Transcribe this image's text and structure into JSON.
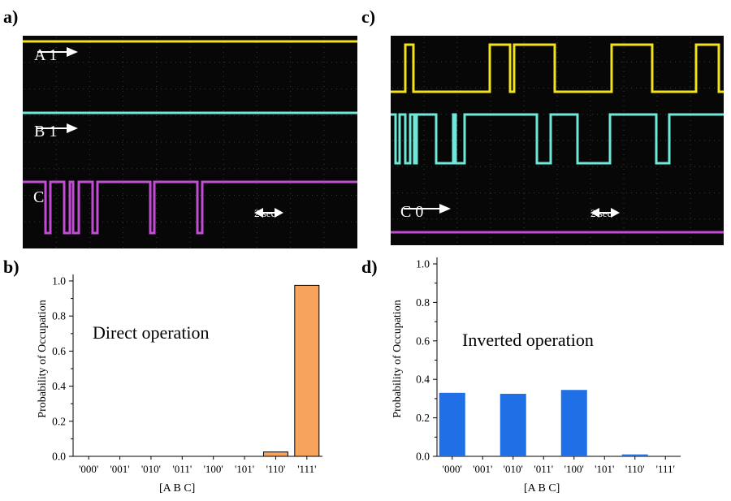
{
  "panels": {
    "a": {
      "label": "a)"
    },
    "b": {
      "label": "b)"
    },
    "c": {
      "label": "c)"
    },
    "d": {
      "label": "d)"
    }
  },
  "scope_a": {
    "channel_a": {
      "name": "A",
      "value": "1"
    },
    "channel_b": {
      "name": "B",
      "value": "1"
    },
    "channel_c": {
      "name": "C"
    },
    "timescale": "2 sec",
    "colors": {
      "a": "#f2e21a",
      "b": "#6ee8d8",
      "c": "#c34bd6",
      "background": "#070707",
      "grid": "#2a2a2a"
    }
  },
  "scope_c": {
    "channel_c": {
      "name": "C",
      "value": "0"
    },
    "timescale": "2 sec",
    "colors": {
      "a": "#f2e21a",
      "b": "#6ee8d8",
      "c": "#c34bd6",
      "background": "#070707"
    }
  },
  "chart_data": [
    {
      "type": "bar",
      "annotation": "Direct operation",
      "xlabel": "[A B C]",
      "ylabel": "Probability of Occupation",
      "categories": [
        "'000'",
        "'001'",
        "'010'",
        "'011'",
        "'100'",
        "'101'",
        "'110'",
        "'111'"
      ],
      "values": [
        0,
        0,
        0,
        0,
        0,
        0,
        0.025,
        0.975
      ],
      "ylim": [
        0,
        1.0
      ],
      "yticks": [
        "0.0",
        "0.2",
        "0.4",
        "0.6",
        "0.8",
        "1.0"
      ],
      "color": "#f7a35c"
    },
    {
      "type": "bar",
      "annotation": "Inverted operation",
      "xlabel": "[A B C]",
      "ylabel": "Probability of Occupation",
      "categories": [
        "'000'",
        "'001'",
        "'010'",
        "'011'",
        "'100'",
        "'101'",
        "'110'",
        "'111'"
      ],
      "values": [
        0.33,
        0,
        0.325,
        0,
        0.345,
        0,
        0.01,
        0
      ],
      "ylim": [
        0,
        1.0
      ],
      "yticks": [
        "0.0",
        "0.2",
        "0.4",
        "0.6",
        "0.8",
        "1.0"
      ],
      "color": "#1f6fe6"
    }
  ]
}
